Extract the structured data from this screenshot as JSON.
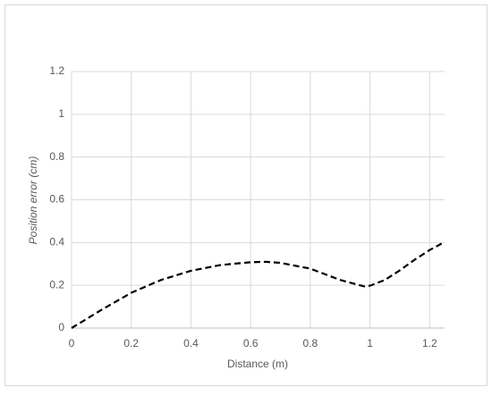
{
  "chart_data": {
    "type": "line",
    "x_label": "Distance (m)",
    "y_label": "Position error (cm)",
    "series": [
      {
        "color": "#000000",
        "x": [
          0,
          0.1,
          0.2,
          0.3,
          0.4,
          0.5,
          0.6,
          0.65,
          0.7,
          0.8,
          0.9,
          0.98,
          1.0,
          1.05,
          1.1,
          1.15,
          1.2,
          1.24
        ],
        "values": [
          0,
          0.085,
          0.165,
          0.225,
          0.268,
          0.295,
          0.308,
          0.31,
          0.305,
          0.278,
          0.225,
          0.195,
          0.198,
          0.225,
          0.27,
          0.32,
          0.365,
          0.395
        ]
      }
    ],
    "xlim": [
      0,
      1.25
    ],
    "xticks": [
      0,
      0.2,
      0.4,
      0.6,
      0.8,
      1,
      1.2
    ],
    "ylim": [
      0,
      1.2
    ],
    "yticks": [
      0,
      0.2,
      0.4,
      0.6,
      0.8,
      1,
      1.2
    ],
    "grid": true
  }
}
